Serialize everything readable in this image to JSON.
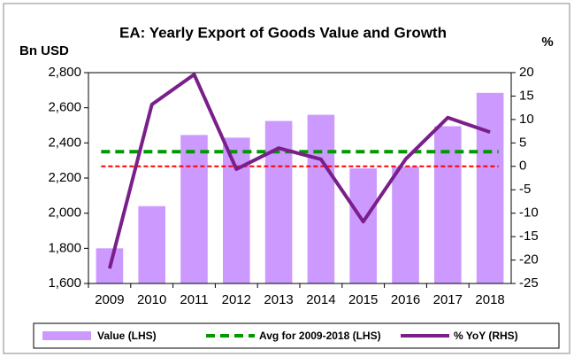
{
  "chart_data": {
    "type": "bar",
    "title": "EA: Yearly Export of Goods Value and Growth",
    "y_label": "Bn USD",
    "y2_label": "%",
    "categories": [
      "2009",
      "2010",
      "2011",
      "2012",
      "2013",
      "2014",
      "2015",
      "2016",
      "2017",
      "2018"
    ],
    "series": [
      {
        "name": "Value (LHS)",
        "type": "bar",
        "color": "#cc99ff",
        "values": [
          1800,
          2040,
          2445,
          2430,
          2525,
          2560,
          2255,
          2265,
          2495,
          2685
        ]
      },
      {
        "name": "Avg for 2009-2018 (LHS)",
        "type": "hline",
        "color": "#009900",
        "value": 2350
      },
      {
        "name": "% YoY (RHS)",
        "type": "line",
        "axis": "y2",
        "color": "#7a1f8a",
        "values": [
          -21.8,
          13.2,
          19.6,
          -0.6,
          3.9,
          1.5,
          -11.8,
          1.5,
          10.4,
          7.3
        ]
      }
    ],
    "y2_reference_line": {
      "value": 0,
      "color": "#ff0000"
    },
    "ylim": [
      1600,
      2800
    ],
    "yticks": [
      {
        "value": 1600,
        "label": "1,600"
      },
      {
        "value": 1800,
        "label": "1,800"
      },
      {
        "value": 2000,
        "label": "2,000"
      },
      {
        "value": 2200,
        "label": "2,200"
      },
      {
        "value": 2400,
        "label": "2,400"
      },
      {
        "value": 2600,
        "label": "2,600"
      },
      {
        "value": 2800,
        "label": "2,800"
      }
    ],
    "y2lim": [
      -25,
      20
    ],
    "y2ticks": [
      -25,
      -20,
      -15,
      -10,
      -5,
      0,
      5,
      10,
      15,
      20
    ],
    "legend": "bottom"
  }
}
